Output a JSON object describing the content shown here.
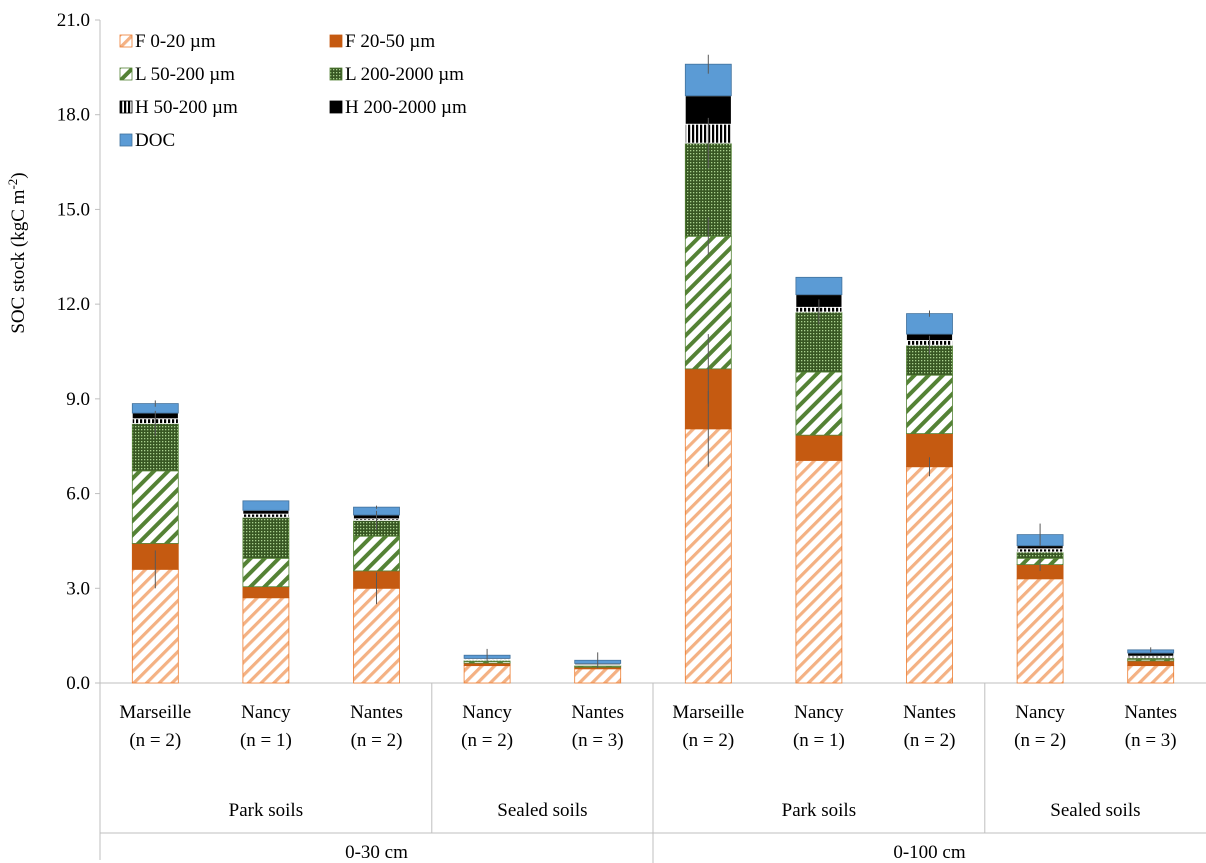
{
  "chart_data": {
    "type": "bar",
    "stacked": true,
    "ylabel": "SOC stock (kgC m",
    "ylabel_sup": "-2",
    "ylabel_tail": ")",
    "ylim": [
      0,
      21
    ],
    "yticks": [
      "0.0",
      "3.0",
      "6.0",
      "9.0",
      "12.0",
      "15.0",
      "18.0",
      "21.0"
    ],
    "grid": false,
    "legend_position": "top-left",
    "groups": [
      {
        "label": "0-30 cm",
        "subgroups": [
          {
            "label": "Park soils",
            "categories": [
              "Marseille",
              "Nancy",
              "Nantes"
            ],
            "n": [
              "(n = 2)",
              "(n = 1)",
              "(n = 2)"
            ]
          },
          {
            "label": "Sealed soils",
            "categories": [
              "Nancy",
              "Nantes"
            ],
            "n": [
              "(n = 2)",
              "(n = 3)"
            ]
          }
        ]
      },
      {
        "label": "0-100 cm",
        "subgroups": [
          {
            "label": "Park soils",
            "categories": [
              "Marseille",
              "Nancy",
              "Nantes"
            ],
            "n": [
              "(n = 2)",
              "(n = 1)",
              "(n = 2)"
            ]
          },
          {
            "label": "Sealed soils",
            "categories": [
              "Nancy",
              "Nantes"
            ],
            "n": [
              "(n = 2)",
              "(n = 3)"
            ]
          }
        ]
      }
    ],
    "series": [
      {
        "name": "F 0-20 µm",
        "color": "#F4B183",
        "pattern": "diag-orange",
        "values": [
          3.6,
          2.7,
          3.0,
          0.55,
          0.45,
          8.05,
          7.05,
          6.85,
          3.3,
          0.55
        ]
      },
      {
        "name": "F 20-50 µm",
        "color": "#C55A11",
        "pattern": "solid",
        "values": [
          0.82,
          0.35,
          0.55,
          0.08,
          0.05,
          1.9,
          0.8,
          1.05,
          0.45,
          0.15
        ]
      },
      {
        "name": "L 50-200 µm",
        "color": "#548235",
        "pattern": "diag-green",
        "values": [
          2.3,
          0.9,
          1.1,
          0.05,
          0.03,
          4.2,
          2.0,
          1.85,
          0.2,
          0.05
        ]
      },
      {
        "name": "L 200-2000 µm",
        "color": "#548235",
        "pattern": "dots-green",
        "values": [
          1.5,
          1.3,
          0.5,
          0.04,
          0.03,
          2.95,
          1.9,
          0.95,
          0.2,
          0.05
        ]
      },
      {
        "name": "H 50-200 µm",
        "color": "#000000",
        "pattern": "vlines",
        "values": [
          0.15,
          0.1,
          0.05,
          0.03,
          0.02,
          0.6,
          0.15,
          0.15,
          0.1,
          0.05
        ]
      },
      {
        "name": "H 200-2000 µm",
        "color": "#000000",
        "pattern": "solid",
        "values": [
          0.18,
          0.12,
          0.12,
          0.03,
          0.04,
          0.9,
          0.4,
          0.2,
          0.1,
          0.1
        ]
      },
      {
        "name": "DOC",
        "color": "#5B9BD5",
        "pattern": "solid",
        "values": [
          0.3,
          0.3,
          0.25,
          0.1,
          0.1,
          1.0,
          0.55,
          0.65,
          0.35,
          0.1
        ]
      }
    ],
    "error_bars": {
      "F 0-20 µm": [
        0.6,
        null,
        0.5,
        null,
        null,
        1.2,
        null,
        0.3,
        null,
        null
      ],
      "F 20-50 µm": [
        null,
        null,
        null,
        null,
        null,
        1.1,
        null,
        null,
        0.2,
        null
      ],
      "L 50-200 µm": [
        null,
        null,
        null,
        null,
        null,
        0.6,
        null,
        null,
        null,
        null
      ],
      "L 200-2000 µm": [
        0.4,
        null,
        0.3,
        null,
        null,
        0.8,
        0.4,
        0.3,
        null,
        null
      ],
      "DOC": [
        0.1,
        null,
        0.05,
        0.2,
        0.25,
        0.3,
        null,
        0.1,
        0.35,
        0.08
      ]
    }
  }
}
